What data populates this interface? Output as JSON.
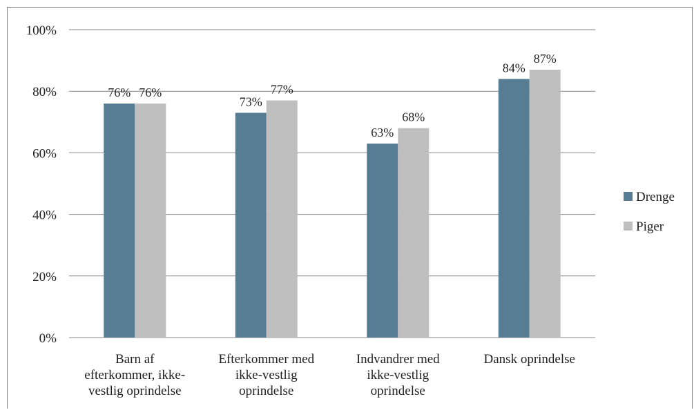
{
  "chart_data": {
    "type": "bar",
    "categories": [
      [
        "Barn af",
        "efterkommer, ikke-",
        "vestlig oprindelse"
      ],
      [
        "Efterkommer med",
        "ikke-vestlig",
        "oprindelse"
      ],
      [
        "Indvandrer med",
        "ikke-vestlig",
        "oprindelse"
      ],
      [
        "Dansk oprindelse"
      ]
    ],
    "series": [
      {
        "name": "Drenge",
        "color": "#567d94",
        "values": [
          76,
          73,
          63,
          84
        ]
      },
      {
        "name": "Piger",
        "color": "#bfbfbf",
        "values": [
          76,
          77,
          68,
          87
        ]
      }
    ],
    "value_labels": [
      [
        "76%",
        "73%",
        "63%",
        "84%"
      ],
      [
        "76%",
        "77%",
        "68%",
        "87%"
      ]
    ],
    "ylim": [
      0,
      100
    ],
    "yticks": [
      "0%",
      "20%",
      "40%",
      "60%",
      "80%",
      "100%"
    ],
    "grid": true,
    "legend_position": "right"
  }
}
